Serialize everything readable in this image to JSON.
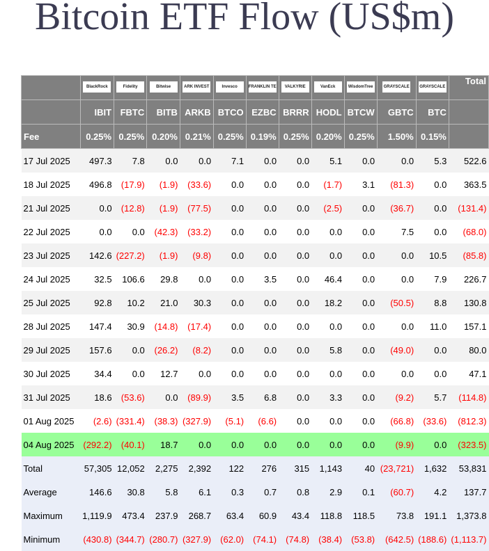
{
  "title": "Bitcoin ETF Flow (US$m)",
  "logos": [
    "BlackRock",
    "Fidelity",
    "Bitwise",
    "ARK INVEST",
    "Invesco",
    "FRANKLIN TEMPLETON",
    "VALKYRIE",
    "VanEck",
    "WisdomTree",
    "GRAYSCALE",
    "GRAYSCALE"
  ],
  "total_label": "Total",
  "tickers": [
    "IBIT",
    "FBTC",
    "BITB",
    "ARKB",
    "BTCO",
    "EZBC",
    "BRRR",
    "HODL",
    "BTCW",
    "GBTC",
    "BTC"
  ],
  "fee_label": "Fee",
  "fees": [
    "0.25%",
    "0.25%",
    "0.20%",
    "0.21%",
    "0.25%",
    "0.19%",
    "0.25%",
    "0.20%",
    "0.25%",
    "1.50%",
    "0.15%"
  ],
  "highlight_color": "#99ff99",
  "rows": [
    {
      "date": "17 Jul 2025",
      "values": [
        "497.3",
        "7.8",
        "0.0",
        "0.0",
        "7.1",
        "0.0",
        "0.0",
        "5.1",
        "0.0",
        "0.0",
        "5.3",
        "522.6"
      ]
    },
    {
      "date": "18 Jul 2025",
      "values": [
        "496.8",
        "(17.9)",
        "(1.9)",
        "(33.6)",
        "0.0",
        "0.0",
        "0.0",
        "(1.7)",
        "3.1",
        "(81.3)",
        "0.0",
        "363.5"
      ]
    },
    {
      "date": "21 Jul 2025",
      "values": [
        "0.0",
        "(12.8)",
        "(1.9)",
        "(77.5)",
        "0.0",
        "0.0",
        "0.0",
        "(2.5)",
        "0.0",
        "(36.7)",
        "0.0",
        "(131.4)"
      ]
    },
    {
      "date": "22 Jul 2025",
      "values": [
        "0.0",
        "0.0",
        "(42.3)",
        "(33.2)",
        "0.0",
        "0.0",
        "0.0",
        "0.0",
        "0.0",
        "7.5",
        "0.0",
        "(68.0)"
      ]
    },
    {
      "date": "23 Jul 2025",
      "values": [
        "142.6",
        "(227.2)",
        "(1.9)",
        "(9.8)",
        "0.0",
        "0.0",
        "0.0",
        "0.0",
        "0.0",
        "0.0",
        "10.5",
        "(85.8)"
      ]
    },
    {
      "date": "24 Jul 2025",
      "values": [
        "32.5",
        "106.6",
        "29.8",
        "0.0",
        "0.0",
        "3.5",
        "0.0",
        "46.4",
        "0.0",
        "0.0",
        "7.9",
        "226.7"
      ]
    },
    {
      "date": "25 Jul 2025",
      "values": [
        "92.8",
        "10.2",
        "21.0",
        "30.3",
        "0.0",
        "0.0",
        "0.0",
        "18.2",
        "0.0",
        "(50.5)",
        "8.8",
        "130.8"
      ]
    },
    {
      "date": "28 Jul 2025",
      "values": [
        "147.4",
        "30.9",
        "(14.8)",
        "(17.4)",
        "0.0",
        "0.0",
        "0.0",
        "0.0",
        "0.0",
        "0.0",
        "11.0",
        "157.1"
      ]
    },
    {
      "date": "29 Jul 2025",
      "values": [
        "157.6",
        "0.0",
        "(26.2)",
        "(8.2)",
        "0.0",
        "0.0",
        "0.0",
        "5.8",
        "0.0",
        "(49.0)",
        "0.0",
        "80.0"
      ]
    },
    {
      "date": "30 Jul 2025",
      "values": [
        "34.4",
        "0.0",
        "12.7",
        "0.0",
        "0.0",
        "0.0",
        "0.0",
        "0.0",
        "0.0",
        "0.0",
        "0.0",
        "47.1"
      ]
    },
    {
      "date": "31 Jul 2025",
      "values": [
        "18.6",
        "(53.6)",
        "0.0",
        "(89.9)",
        "3.5",
        "6.8",
        "0.0",
        "3.3",
        "0.0",
        "(9.2)",
        "5.7",
        "(114.8)"
      ]
    },
    {
      "date": "01 Aug 2025",
      "values": [
        "(2.6)",
        "(331.4)",
        "(38.3)",
        "(327.9)",
        "(5.1)",
        "(6.6)",
        "0.0",
        "0.0",
        "0.0",
        "(66.8)",
        "(33.6)",
        "(812.3)"
      ]
    },
    {
      "date": "04 Aug 2025",
      "highlight": true,
      "values": [
        "(292.2)",
        "(40.1)",
        "18.7",
        "0.0",
        "0.0",
        "0.0",
        "0.0",
        "0.0",
        "0.0",
        "(9.9)",
        "0.0",
        "(323.5)"
      ]
    }
  ],
  "summary": [
    {
      "label": "Total",
      "values": [
        "57,305",
        "12,052",
        "2,275",
        "2,392",
        "122",
        "276",
        "315",
        "1,143",
        "40",
        "(23,721)",
        "1,632",
        "53,831"
      ]
    },
    {
      "label": "Average",
      "values": [
        "146.6",
        "30.8",
        "5.8",
        "6.1",
        "0.3",
        "0.7",
        "0.8",
        "2.9",
        "0.1",
        "(60.7)",
        "4.2",
        "137.7"
      ]
    },
    {
      "label": "Maximum",
      "values": [
        "1,119.9",
        "473.4",
        "237.9",
        "268.7",
        "63.4",
        "60.9",
        "43.4",
        "118.8",
        "118.5",
        "73.8",
        "191.1",
        "1,373.8"
      ]
    },
    {
      "label": "Minimum",
      "values": [
        "(430.8)",
        "(344.7)",
        "(280.7)",
        "(327.9)",
        "(62.0)",
        "(74.1)",
        "(74.8)",
        "(38.4)",
        "(53.8)",
        "(642.5)",
        "(188.6)",
        "(1,113.7)"
      ]
    }
  ]
}
